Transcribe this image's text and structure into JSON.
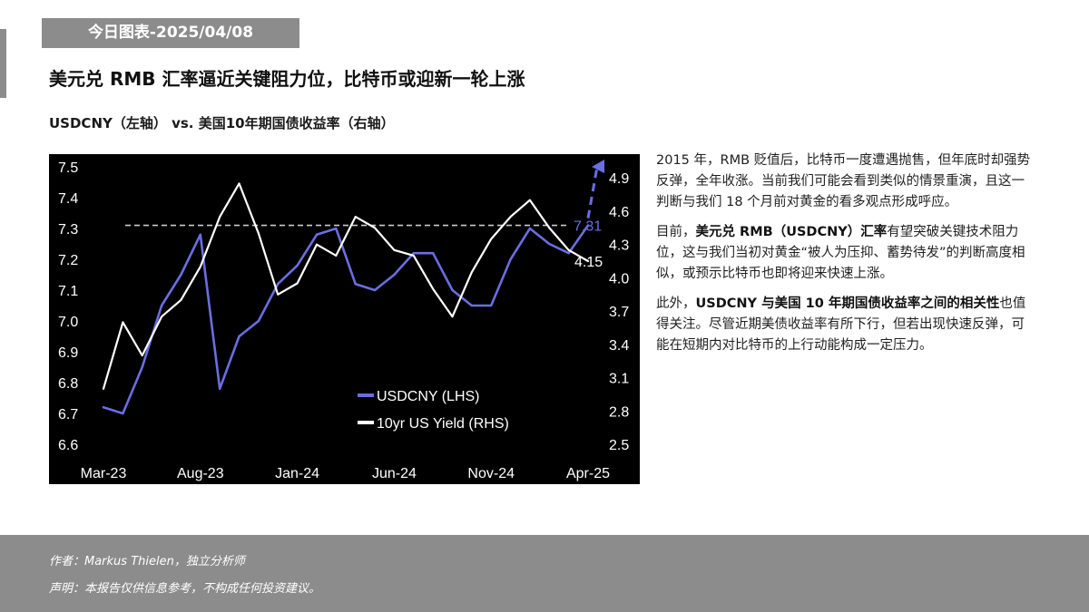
{
  "header": {
    "date_tag": "今日图表-2025/04/08",
    "headline": "美元兑 RMB 汇率逼近关键阻力位，比特币或迎新一轮上涨",
    "chart_subtitle": "USDCNY（左轴） vs. 美国10年期国债收益率（右轴）"
  },
  "commentary": {
    "p1": "2015 年，RMB 贬值后，比特币一度遭遇抛售，但年底时却强势反弹，全年收涨。当前我们可能会看到类似的情景重演，且这一判断与我们 18 个月前对黄金的看多观点形成呼应。",
    "p2_a": "目前，",
    "p2_b": "美元兑 RMB（USDCNY）汇率",
    "p2_c": "有望突破关键技术阻力位，这与我们当初对黄金“被人为压抑、蓄势待发”的判断高度相似，或预示比特币也即将迎来快速上涨。",
    "p3_a": "此外，",
    "p3_b": "USDCNY 与美国 10 年期国债收益率之间的相关性",
    "p3_c": "也值得关注。尽管近期美债收益率有所下行，但若出现快速反弹，可能在短期内对比特币的上行动能构成一定压力。"
  },
  "footer": {
    "author": "作者：Markus Thielen，独立分析师",
    "disclaimer": "声明：本报告仅供信息参考，不构成任何投资建议。"
  },
  "colors": {
    "usdcny_line": "#6b6ee0",
    "yield_line": "#ffffff",
    "resistance_line": "#cccccc",
    "chart_background": "#000000",
    "header_gray": "#8c8c8c"
  },
  "chart_data": {
    "type": "line",
    "title": "",
    "grid": false,
    "legend_position": "bottom-center",
    "x_ticks": [
      "Mar-23",
      "Aug-23",
      "Jan-24",
      "Jun-24",
      "Nov-24",
      "Apr-25"
    ],
    "y_left": {
      "label": "",
      "range": [
        6.6,
        7.5
      ],
      "ticks": [
        "7.5",
        "7.4",
        "7.3",
        "7.2",
        "7.1",
        "7.0",
        "6.9",
        "6.8",
        "6.7",
        "6.6"
      ]
    },
    "y_right": {
      "label": "",
      "range": [
        2.5,
        5.0
      ],
      "ticks": [
        "4.9",
        "4.6",
        "4.3",
        "4.0",
        "3.7",
        "3.4",
        "3.1",
        "2.8",
        "2.5"
      ]
    },
    "series": [
      {
        "name": "USDCNY (LHS)",
        "axis": "left",
        "x": [
          "2023-03",
          "2023-04",
          "2023-05",
          "2023-06",
          "2023-07",
          "2023-08",
          "2023-09",
          "2023-10",
          "2023-11",
          "2023-12",
          "2024-01",
          "2024-02",
          "2024-03",
          "2024-04",
          "2024-05",
          "2024-06",
          "2024-07",
          "2024-08",
          "2024-09",
          "2024-10",
          "2024-11",
          "2024-12",
          "2025-01",
          "2025-02",
          "2025-03",
          "2025-04"
        ],
        "values": [
          6.72,
          6.7,
          6.85,
          7.05,
          7.15,
          7.28,
          6.78,
          6.95,
          7.0,
          7.12,
          7.18,
          7.28,
          7.3,
          7.12,
          7.1,
          7.15,
          7.22,
          7.22,
          7.1,
          7.05,
          7.05,
          7.2,
          7.3,
          7.25,
          7.22,
          7.31
        ]
      },
      {
        "name": "10yr US Yield (RHS)",
        "axis": "right",
        "x": [
          "2023-03",
          "2023-04",
          "2023-05",
          "2023-06",
          "2023-07",
          "2023-08",
          "2023-09",
          "2023-10",
          "2023-11",
          "2023-12",
          "2024-01",
          "2024-02",
          "2024-03",
          "2024-04",
          "2024-05",
          "2024-06",
          "2024-07",
          "2024-08",
          "2024-09",
          "2024-10",
          "2024-11",
          "2024-12",
          "2025-01",
          "2025-02",
          "2025-03",
          "2025-04"
        ],
        "values": [
          3.0,
          3.6,
          3.3,
          3.65,
          3.8,
          4.1,
          4.55,
          4.85,
          4.4,
          3.85,
          3.95,
          4.3,
          4.2,
          4.55,
          4.45,
          4.25,
          4.2,
          3.9,
          3.65,
          4.05,
          4.35,
          4.55,
          4.7,
          4.45,
          4.25,
          4.15
        ]
      }
    ],
    "annotations": [
      {
        "text": "7.31",
        "value": 7.31,
        "axis": "left",
        "note_type": "horizontal-resistance-line"
      },
      {
        "text": "4.15",
        "value": 4.15,
        "axis": "right",
        "note_type": "last-value"
      },
      {
        "text": "",
        "note_type": "upward-dashed-arrow"
      }
    ]
  }
}
